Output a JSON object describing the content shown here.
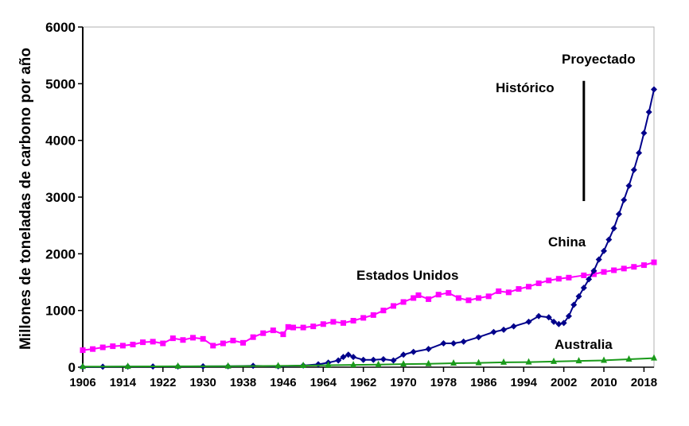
{
  "chart_data": {
    "type": "line",
    "title": "",
    "xlabel": "",
    "ylabel": "Millones de toneladas de carbono por año",
    "ylim": [
      0,
      6000
    ],
    "xlim": [
      1906,
      2020
    ],
    "yticks": [
      0,
      1000,
      2000,
      3000,
      4000,
      5000,
      6000
    ],
    "xtick_labels": [
      "1906",
      "1914",
      "1922",
      "1930",
      "1938",
      "1946",
      "1964",
      "1962",
      "1970",
      "1978",
      "1986",
      "1994",
      "2002",
      "2010",
      "2018"
    ],
    "grid": false,
    "legend": "none",
    "series": [
      {
        "name": "Estados Unidos",
        "color": "#ff00ff",
        "marker": "square",
        "x": [
          1906,
          1908,
          1910,
          1912,
          1914,
          1916,
          1918,
          1920,
          1922,
          1924,
          1926,
          1928,
          1930,
          1932,
          1934,
          1936,
          1938,
          1940,
          1942,
          1944,
          1946,
          1947,
          1948,
          1950,
          1952,
          1954,
          1956,
          1958,
          1960,
          1962,
          1964,
          1966,
          1968,
          1970,
          1972,
          1973,
          1975,
          1977,
          1979,
          1981,
          1983,
          1985,
          1987,
          1989,
          1991,
          1993,
          1995,
          1997,
          1999,
          2001,
          2003,
          2006,
          2008,
          2010,
          2012,
          2014,
          2016,
          2018,
          2020
        ],
        "y": [
          300,
          320,
          350,
          370,
          380,
          400,
          440,
          450,
          420,
          510,
          480,
          520,
          500,
          380,
          420,
          470,
          430,
          530,
          600,
          650,
          580,
          710,
          700,
          700,
          720,
          760,
          800,
          780,
          820,
          870,
          920,
          1000,
          1080,
          1150,
          1220,
          1270,
          1200,
          1280,
          1310,
          1220,
          1180,
          1220,
          1250,
          1340,
          1320,
          1380,
          1420,
          1480,
          1530,
          1560,
          1580,
          1620,
          1640,
          1680,
          1710,
          1740,
          1770,
          1800,
          1850
        ]
      },
      {
        "name": "China",
        "color": "#00008b",
        "marker": "diamond",
        "x": [
          1906,
          1910,
          1915,
          1920,
          1925,
          1930,
          1935,
          1940,
          1945,
          1950,
          1953,
          1955,
          1957,
          1958,
          1959,
          1960,
          1962,
          1964,
          1966,
          1968,
          1970,
          1972,
          1975,
          1978,
          1980,
          1982,
          1985,
          1988,
          1990,
          1992,
          1995,
          1997,
          1999,
          2000,
          2001,
          2002,
          2003,
          2004,
          2005,
          2006,
          2007,
          2008,
          2009,
          2010,
          2011,
          2012,
          2013,
          2014,
          2015,
          2016,
          2017,
          2018,
          2019,
          2020
        ],
        "y": [
          5,
          8,
          10,
          12,
          12,
          15,
          15,
          25,
          15,
          30,
          50,
          80,
          120,
          180,
          220,
          180,
          130,
          130,
          140,
          120,
          220,
          270,
          320,
          420,
          420,
          450,
          530,
          620,
          660,
          720,
          800,
          900,
          880,
          800,
          760,
          780,
          900,
          1100,
          1250,
          1400,
          1550,
          1700,
          1900,
          2050,
          2250,
          2450,
          2700,
          2950,
          3200,
          3480,
          3780,
          4130,
          4500,
          4900
        ]
      },
      {
        "name": "Australia",
        "color": "#1a9a1a",
        "marker": "triangle",
        "x": [
          1906,
          1915,
          1925,
          1935,
          1945,
          1950,
          1955,
          1960,
          1965,
          1970,
          1975,
          1980,
          1985,
          1990,
          1995,
          2000,
          2005,
          2010,
          2015,
          2020
        ],
        "y": [
          10,
          12,
          15,
          18,
          22,
          28,
          35,
          40,
          45,
          55,
          60,
          70,
          75,
          85,
          90,
          100,
          110,
          120,
          140,
          160
        ]
      }
    ],
    "annotations": [
      "Estados Unidos",
      "China",
      "Australia",
      "Histórico",
      "Proyectado"
    ],
    "divider_year": 2006
  }
}
